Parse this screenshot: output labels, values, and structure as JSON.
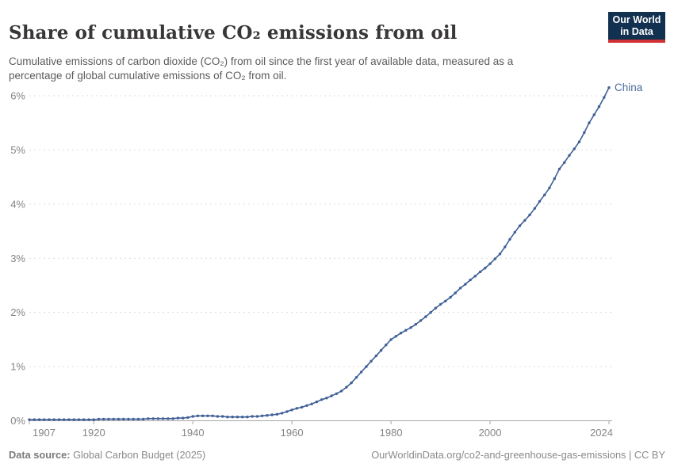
{
  "header": {
    "title": "Share of cumulative CO₂ emissions from oil",
    "subtitle": "Cumulative emissions of carbon dioxide (CO₂) from oil since the first year of available data, measured as a percentage of global cumulative emissions of CO₂ from oil.",
    "logo": {
      "line1": "Our World",
      "line2": "in Data"
    }
  },
  "chart_data": {
    "type": "line",
    "title": "Share of cumulative CO₂ emissions from oil",
    "xlabel": "",
    "ylabel": "",
    "xlim": [
      1907,
      2024
    ],
    "ylim": [
      0,
      6.3
    ],
    "grid": "horizontal-dashed",
    "legend_position": "end-of-line-label",
    "x_ticks": [
      1907,
      1920,
      1940,
      1960,
      1980,
      2000,
      2024
    ],
    "y_ticks": [
      {
        "value": 0,
        "label": "0%"
      },
      {
        "value": 1,
        "label": "1%"
      },
      {
        "value": 2,
        "label": "2%"
      },
      {
        "value": 3,
        "label": "3%"
      },
      {
        "value": 4,
        "label": "4%"
      },
      {
        "value": 5,
        "label": "5%"
      },
      {
        "value": 6,
        "label": "6%"
      }
    ],
    "series": [
      {
        "name": "China",
        "unit": "%",
        "x": [
          1907,
          1908,
          1909,
          1910,
          1911,
          1912,
          1913,
          1914,
          1915,
          1916,
          1917,
          1918,
          1919,
          1920,
          1921,
          1922,
          1923,
          1924,
          1925,
          1926,
          1927,
          1928,
          1929,
          1930,
          1931,
          1932,
          1933,
          1934,
          1935,
          1936,
          1937,
          1938,
          1939,
          1940,
          1941,
          1942,
          1943,
          1944,
          1945,
          1946,
          1947,
          1948,
          1949,
          1950,
          1951,
          1952,
          1953,
          1954,
          1955,
          1956,
          1957,
          1958,
          1959,
          1960,
          1961,
          1962,
          1963,
          1964,
          1965,
          1966,
          1967,
          1968,
          1969,
          1970,
          1971,
          1972,
          1973,
          1974,
          1975,
          1976,
          1977,
          1978,
          1979,
          1980,
          1981,
          1982,
          1983,
          1984,
          1985,
          1986,
          1987,
          1988,
          1989,
          1990,
          1991,
          1992,
          1993,
          1994,
          1995,
          1996,
          1997,
          1998,
          1999,
          2000,
          2001,
          2002,
          2003,
          2004,
          2005,
          2006,
          2007,
          2008,
          2009,
          2010,
          2011,
          2012,
          2013,
          2014,
          2015,
          2016,
          2017,
          2018,
          2019,
          2020,
          2021,
          2022,
          2023,
          2024
        ],
        "values": [
          0.02,
          0.02,
          0.02,
          0.02,
          0.02,
          0.02,
          0.02,
          0.02,
          0.02,
          0.02,
          0.02,
          0.02,
          0.02,
          0.02,
          0.03,
          0.03,
          0.03,
          0.03,
          0.03,
          0.03,
          0.03,
          0.03,
          0.03,
          0.03,
          0.04,
          0.04,
          0.04,
          0.04,
          0.04,
          0.04,
          0.05,
          0.05,
          0.06,
          0.08,
          0.09,
          0.09,
          0.09,
          0.09,
          0.08,
          0.08,
          0.07,
          0.07,
          0.07,
          0.07,
          0.07,
          0.08,
          0.08,
          0.09,
          0.1,
          0.11,
          0.12,
          0.14,
          0.17,
          0.2,
          0.23,
          0.25,
          0.28,
          0.31,
          0.35,
          0.39,
          0.42,
          0.46,
          0.5,
          0.55,
          0.62,
          0.7,
          0.8,
          0.9,
          1.0,
          1.1,
          1.2,
          1.3,
          1.4,
          1.5,
          1.56,
          1.62,
          1.67,
          1.72,
          1.78,
          1.85,
          1.92,
          2.0,
          2.08,
          2.15,
          2.21,
          2.28,
          2.36,
          2.45,
          2.52,
          2.6,
          2.67,
          2.75,
          2.82,
          2.9,
          2.99,
          3.08,
          3.21,
          3.35,
          3.48,
          3.6,
          3.7,
          3.8,
          3.92,
          4.05,
          4.17,
          4.3,
          4.47,
          4.65,
          4.77,
          4.9,
          5.02,
          5.15,
          5.32,
          5.5,
          5.65,
          5.8,
          5.97,
          6.15
        ]
      }
    ],
    "entity_label": "China"
  },
  "footer": {
    "source_prefix": "Data source:",
    "source_text": "Global Carbon Budget (2025)",
    "attribution": "OurWorldinData.org/co2-and-greenhouse-gas-emissions | CC BY"
  },
  "colors": {
    "line": "#3f5f96",
    "entity_label": "#4c6a9c",
    "grid": "#dcdcdc",
    "axis": "#a5a5a5",
    "tick_label": "#858585",
    "title": "#383636",
    "subtitle": "#5b5b5b",
    "footer": "#8a8a8a",
    "footer_bold": "#7a7a7a",
    "logo_bg": "#12304f",
    "logo_accent": "#cf3134"
  }
}
